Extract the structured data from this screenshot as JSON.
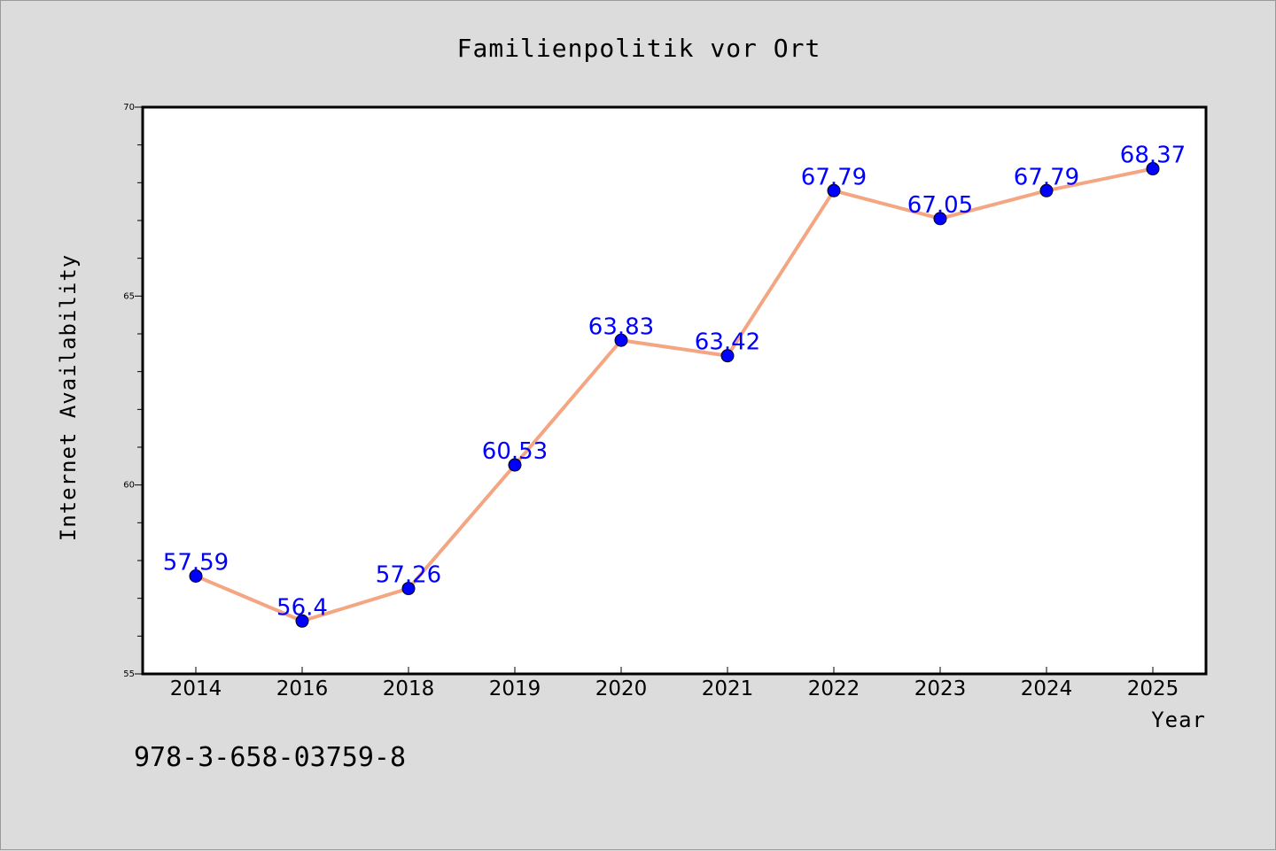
{
  "chart_data": {
    "type": "line",
    "title": "Familienpolitik vor Ort",
    "xlabel": "Year",
    "ylabel": "Internet Availability",
    "categories": [
      "2014",
      "2016",
      "2018",
      "2019",
      "2020",
      "2021",
      "2022",
      "2023",
      "2024",
      "2025"
    ],
    "series": [
      {
        "values": [
          57.59,
          56.4,
          57.26,
          60.53,
          63.83,
          63.42,
          67.79,
          67.05,
          67.79,
          68.37
        ],
        "data_labels": [
          "57.59",
          "56.4",
          "57.26",
          "60.53",
          "63.83",
          "63.42",
          "67.79",
          "67.05",
          "67.79",
          "68.37"
        ],
        "line_color": "#f4a582",
        "marker_color": "#0000ff",
        "label_color": "#0000ff"
      }
    ],
    "ylim": [
      55,
      70
    ],
    "yticks": [
      55,
      60,
      65,
      70
    ],
    "grid": false,
    "legend": "none"
  },
  "footnote": "978-3-658-03759-8",
  "colors": {
    "figure_background": "#dcdcdc",
    "plot_background": "#ffffff"
  }
}
